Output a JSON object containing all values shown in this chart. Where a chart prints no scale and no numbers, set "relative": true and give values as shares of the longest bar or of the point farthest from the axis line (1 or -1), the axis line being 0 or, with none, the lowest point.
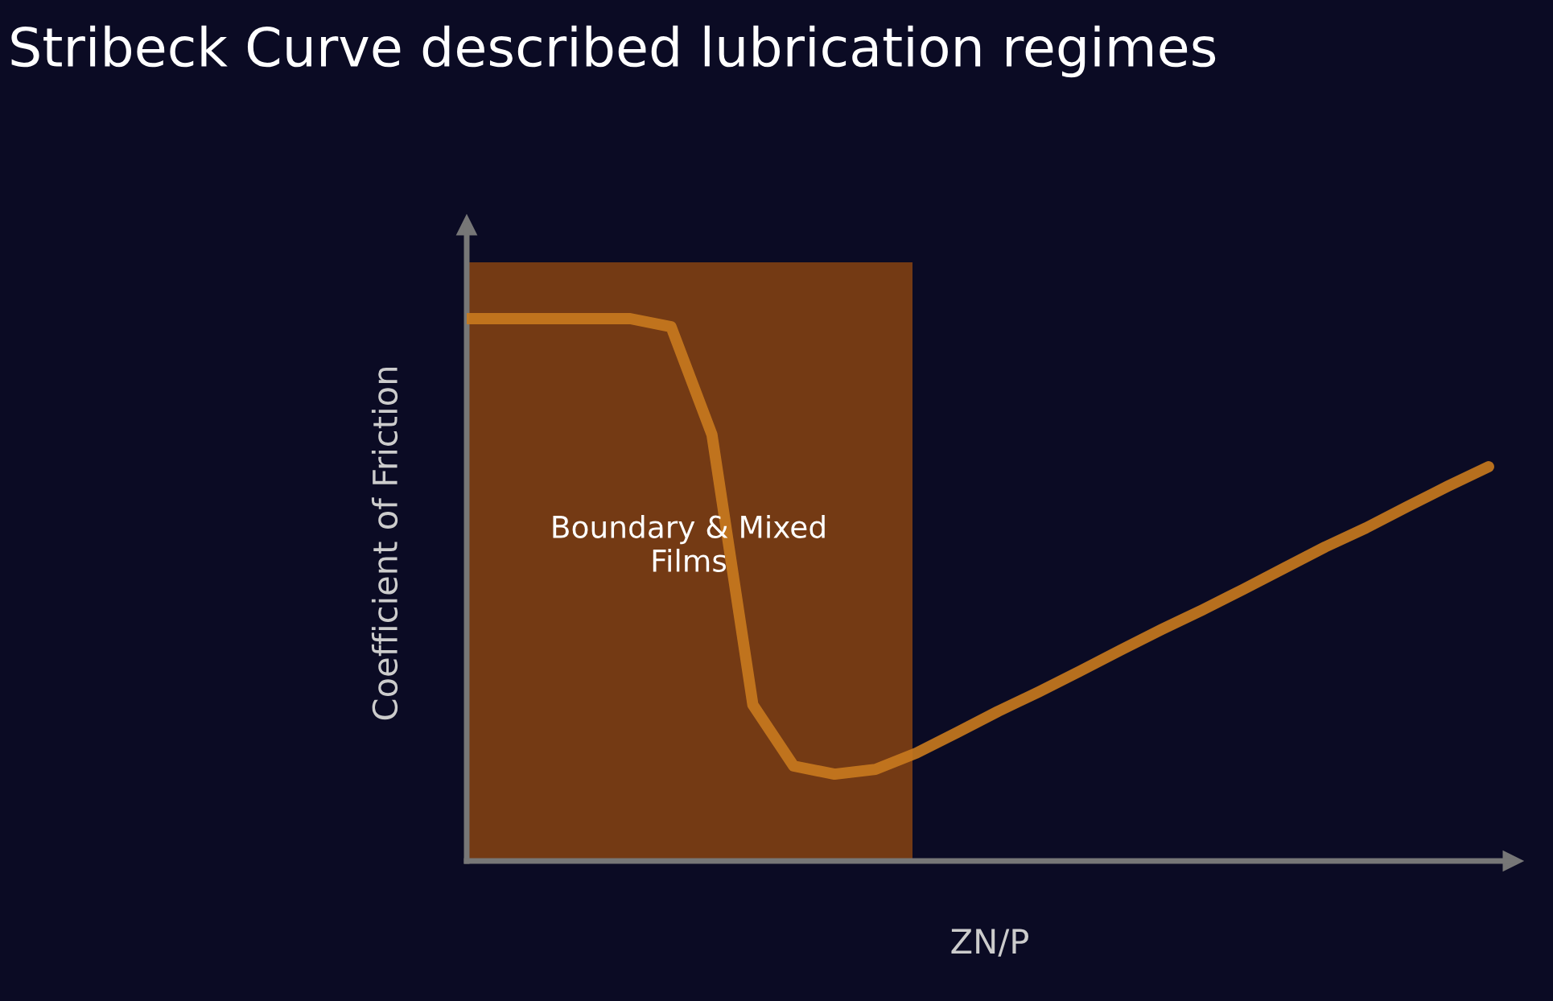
{
  "chart_data": {
    "type": "line",
    "title": "Stribeck Curve described lubrication regimes",
    "xlabel": "ZN/P",
    "ylabel": "Coefficient of Friction",
    "relative": true,
    "categories": [
      null,
      null,
      null,
      null,
      null,
      null,
      null,
      null,
      null,
      null,
      null,
      null,
      null,
      null,
      null,
      null,
      null,
      null,
      null,
      null,
      null,
      null,
      null,
      null,
      null,
      null
    ],
    "series": [
      {
        "color": "#c97a1e",
        "values": [
          1.0,
          1.0,
          1.0,
          1.0,
          1.0,
          0.985,
          0.786,
          0.288,
          0.175,
          0.16,
          0.169,
          0.199,
          0.237,
          0.276,
          0.312,
          0.35,
          0.389,
          0.427,
          0.463,
          0.501,
          0.54,
          0.579,
          0.614,
          0.653,
          0.691,
          0.727
        ]
      }
    ],
    "annotations": [
      "Boundary & Mixed\nFilms"
    ],
    "marker": "none",
    "line_style": "solid"
  }
}
